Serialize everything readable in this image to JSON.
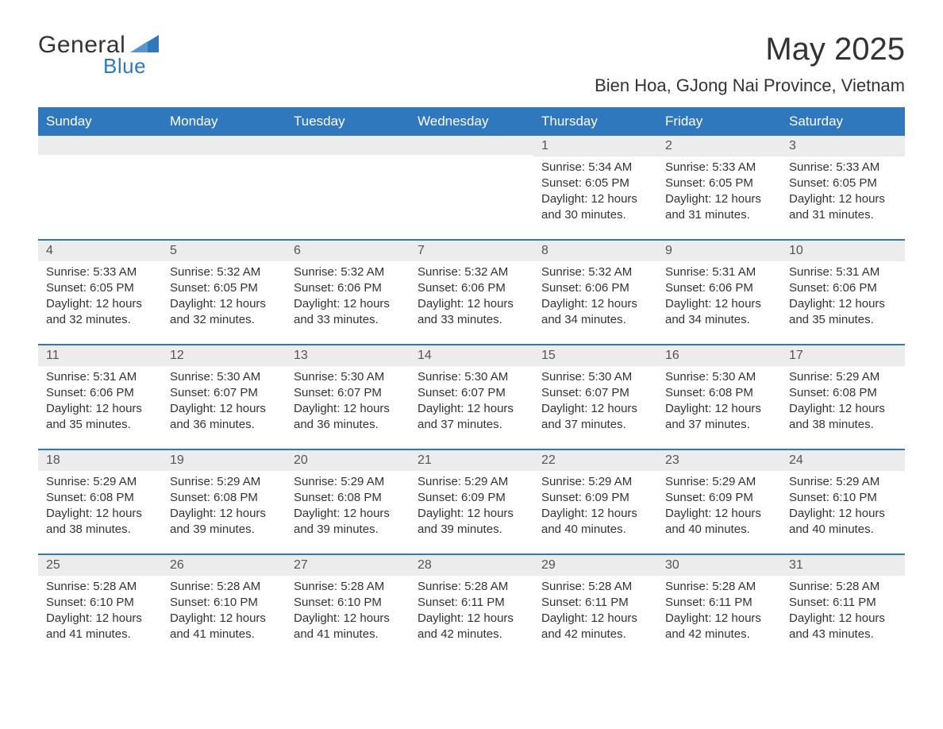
{
  "brand": {
    "word1": "General",
    "word2": "Blue"
  },
  "colors": {
    "accent": "#2f78bd",
    "header_bg": "#2f78bd",
    "header_text": "#ffffff",
    "daynum_bg": "#ececec",
    "text": "#333333",
    "rule": "#2f78bd",
    "background": "#ffffff"
  },
  "title": "May 2025",
  "location": "Bien Hoa, GJong Nai Province, Vietnam",
  "day_headers": [
    "Sunday",
    "Monday",
    "Tuesday",
    "Wednesday",
    "Thursday",
    "Friday",
    "Saturday"
  ],
  "labels": {
    "sunrise": "Sunrise:",
    "sunset": "Sunset:",
    "daylight_prefix": "Daylight:"
  },
  "weeks": [
    [
      null,
      null,
      null,
      null,
      {
        "n": "1",
        "sunrise": "5:34 AM",
        "sunset": "6:05 PM",
        "daylight": "12 hours and 30 minutes."
      },
      {
        "n": "2",
        "sunrise": "5:33 AM",
        "sunset": "6:05 PM",
        "daylight": "12 hours and 31 minutes."
      },
      {
        "n": "3",
        "sunrise": "5:33 AM",
        "sunset": "6:05 PM",
        "daylight": "12 hours and 31 minutes."
      }
    ],
    [
      {
        "n": "4",
        "sunrise": "5:33 AM",
        "sunset": "6:05 PM",
        "daylight": "12 hours and 32 minutes."
      },
      {
        "n": "5",
        "sunrise": "5:32 AM",
        "sunset": "6:05 PM",
        "daylight": "12 hours and 32 minutes."
      },
      {
        "n": "6",
        "sunrise": "5:32 AM",
        "sunset": "6:06 PM",
        "daylight": "12 hours and 33 minutes."
      },
      {
        "n": "7",
        "sunrise": "5:32 AM",
        "sunset": "6:06 PM",
        "daylight": "12 hours and 33 minutes."
      },
      {
        "n": "8",
        "sunrise": "5:32 AM",
        "sunset": "6:06 PM",
        "daylight": "12 hours and 34 minutes."
      },
      {
        "n": "9",
        "sunrise": "5:31 AM",
        "sunset": "6:06 PM",
        "daylight": "12 hours and 34 minutes."
      },
      {
        "n": "10",
        "sunrise": "5:31 AM",
        "sunset": "6:06 PM",
        "daylight": "12 hours and 35 minutes."
      }
    ],
    [
      {
        "n": "11",
        "sunrise": "5:31 AM",
        "sunset": "6:06 PM",
        "daylight": "12 hours and 35 minutes."
      },
      {
        "n": "12",
        "sunrise": "5:30 AM",
        "sunset": "6:07 PM",
        "daylight": "12 hours and 36 minutes."
      },
      {
        "n": "13",
        "sunrise": "5:30 AM",
        "sunset": "6:07 PM",
        "daylight": "12 hours and 36 minutes."
      },
      {
        "n": "14",
        "sunrise": "5:30 AM",
        "sunset": "6:07 PM",
        "daylight": "12 hours and 37 minutes."
      },
      {
        "n": "15",
        "sunrise": "5:30 AM",
        "sunset": "6:07 PM",
        "daylight": "12 hours and 37 minutes."
      },
      {
        "n": "16",
        "sunrise": "5:30 AM",
        "sunset": "6:08 PM",
        "daylight": "12 hours and 37 minutes."
      },
      {
        "n": "17",
        "sunrise": "5:29 AM",
        "sunset": "6:08 PM",
        "daylight": "12 hours and 38 minutes."
      }
    ],
    [
      {
        "n": "18",
        "sunrise": "5:29 AM",
        "sunset": "6:08 PM",
        "daylight": "12 hours and 38 minutes."
      },
      {
        "n": "19",
        "sunrise": "5:29 AM",
        "sunset": "6:08 PM",
        "daylight": "12 hours and 39 minutes."
      },
      {
        "n": "20",
        "sunrise": "5:29 AM",
        "sunset": "6:08 PM",
        "daylight": "12 hours and 39 minutes."
      },
      {
        "n": "21",
        "sunrise": "5:29 AM",
        "sunset": "6:09 PM",
        "daylight": "12 hours and 39 minutes."
      },
      {
        "n": "22",
        "sunrise": "5:29 AM",
        "sunset": "6:09 PM",
        "daylight": "12 hours and 40 minutes."
      },
      {
        "n": "23",
        "sunrise": "5:29 AM",
        "sunset": "6:09 PM",
        "daylight": "12 hours and 40 minutes."
      },
      {
        "n": "24",
        "sunrise": "5:29 AM",
        "sunset": "6:10 PM",
        "daylight": "12 hours and 40 minutes."
      }
    ],
    [
      {
        "n": "25",
        "sunrise": "5:28 AM",
        "sunset": "6:10 PM",
        "daylight": "12 hours and 41 minutes."
      },
      {
        "n": "26",
        "sunrise": "5:28 AM",
        "sunset": "6:10 PM",
        "daylight": "12 hours and 41 minutes."
      },
      {
        "n": "27",
        "sunrise": "5:28 AM",
        "sunset": "6:10 PM",
        "daylight": "12 hours and 41 minutes."
      },
      {
        "n": "28",
        "sunrise": "5:28 AM",
        "sunset": "6:11 PM",
        "daylight": "12 hours and 42 minutes."
      },
      {
        "n": "29",
        "sunrise": "5:28 AM",
        "sunset": "6:11 PM",
        "daylight": "12 hours and 42 minutes."
      },
      {
        "n": "30",
        "sunrise": "5:28 AM",
        "sunset": "6:11 PM",
        "daylight": "12 hours and 42 minutes."
      },
      {
        "n": "31",
        "sunrise": "5:28 AM",
        "sunset": "6:11 PM",
        "daylight": "12 hours and 43 minutes."
      }
    ]
  ]
}
